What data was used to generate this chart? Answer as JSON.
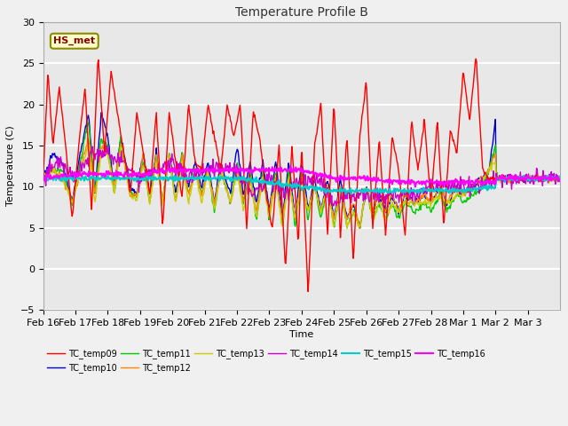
{
  "title": "Temperature Profile B",
  "xlabel": "Time",
  "ylabel": "Temperature (C)",
  "ylim": [
    -5,
    30
  ],
  "yticks": [
    -5,
    0,
    5,
    10,
    15,
    20,
    25,
    30
  ],
  "annotation_text": "HS_met",
  "series_colors": {
    "TC_temp09": "#ff0000",
    "TC_temp10": "#0000cc",
    "TC_temp11": "#00cc00",
    "TC_temp12": "#ff8800",
    "TC_temp13": "#cccc00",
    "TC_temp14": "#cc00cc",
    "TC_temp15": "#00cccc",
    "TC_temp16": "#ff00ff"
  },
  "x_tick_labels": [
    "Feb 16",
    "Feb 17",
    "Feb 18",
    "Feb 19",
    "Feb 20",
    "Feb 21",
    "Feb 22",
    "Feb 23",
    "Feb 24",
    "Feb 25",
    "Feb 26",
    "Feb 27",
    "Feb 28",
    "Mar 1",
    "Mar 2",
    "Mar 3"
  ],
  "fig_bg": "#f0f0f0",
  "ax_bg": "#e8e8e8",
  "grid_color": "#ffffff"
}
